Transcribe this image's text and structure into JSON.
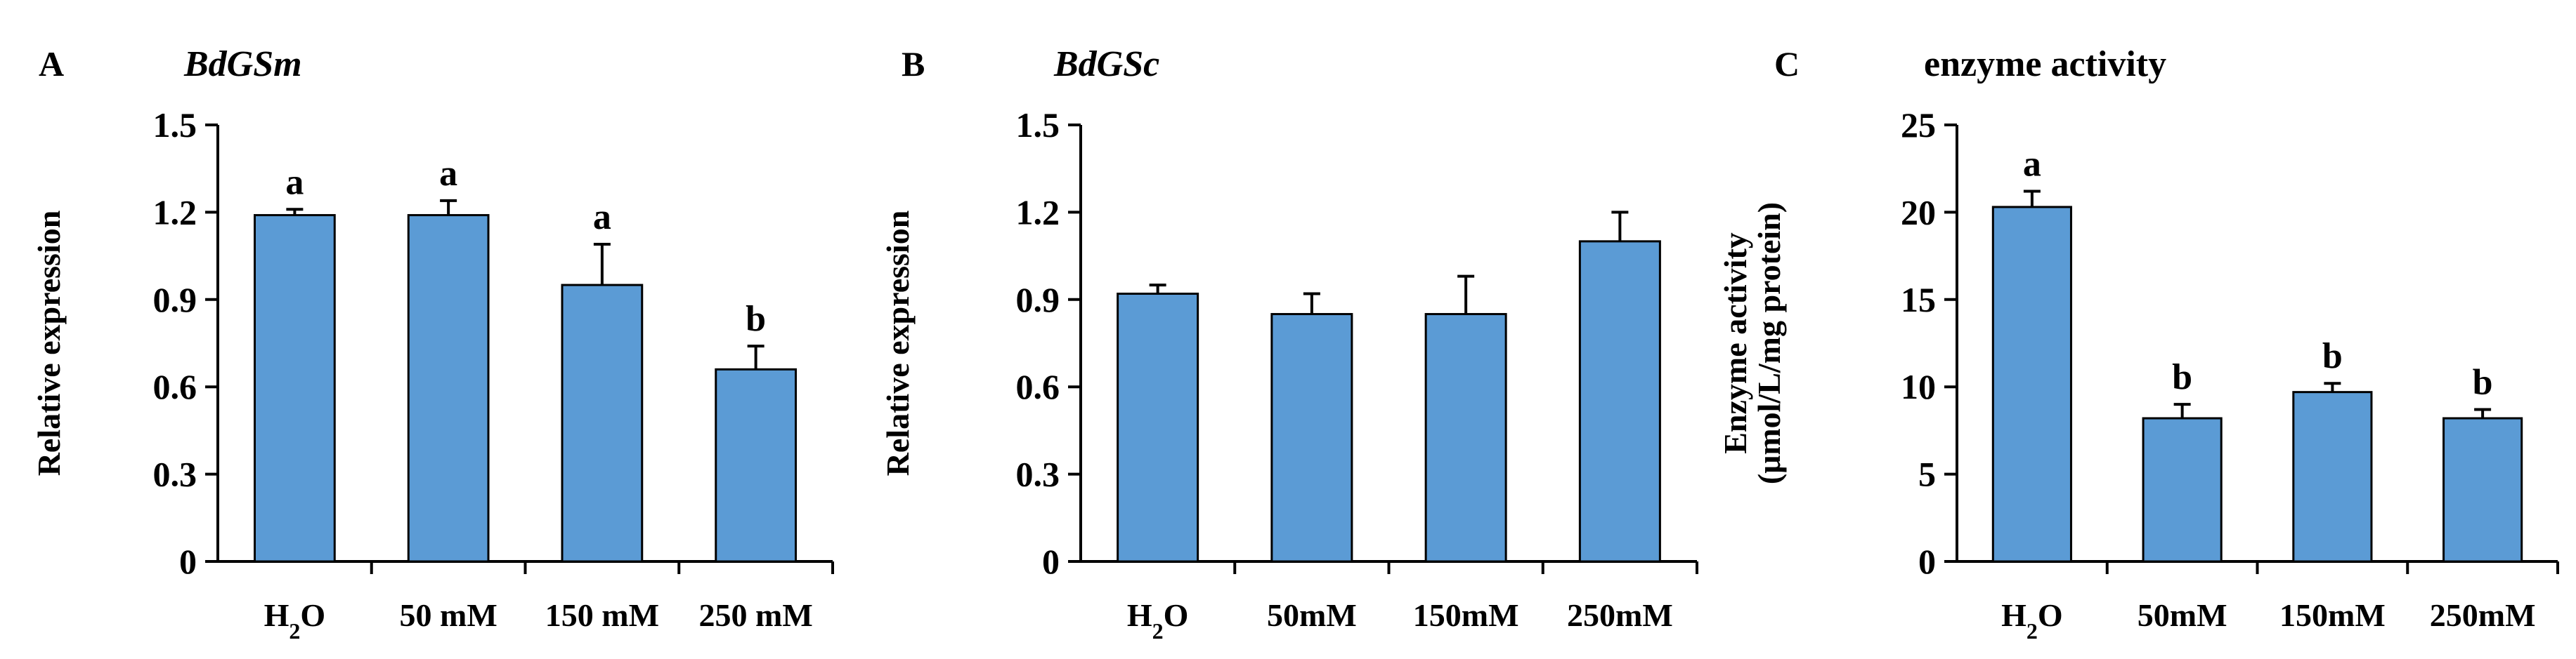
{
  "chart_data": [
    {
      "type": "bar",
      "panel": "A",
      "title": "BdGSm",
      "title_italic": true,
      "ylabel": "Relative expression",
      "ylim": [
        0,
        1.5
      ],
      "yticks": [
        "0",
        "0.3",
        "0.6",
        "0.9",
        "1.2",
        "1.5"
      ],
      "categories": [
        "H2O",
        "50 mM",
        "150 mM",
        "250 mM"
      ],
      "values": [
        1.19,
        1.19,
        0.95,
        0.66
      ],
      "errors": [
        0.02,
        0.05,
        0.14,
        0.08
      ],
      "letters": [
        "a",
        "a",
        "a",
        "b"
      ],
      "bar_color": "#5b9bd5"
    },
    {
      "type": "bar",
      "panel": "B",
      "title": "BdGSc",
      "title_italic": true,
      "ylabel": "Relative expression",
      "ylim": [
        0,
        1.5
      ],
      "yticks": [
        "0",
        "0.3",
        "0.6",
        "0.9",
        "1.2",
        "1.5"
      ],
      "categories": [
        "H2O",
        "50mM",
        "150mM",
        "250mM"
      ],
      "values": [
        0.92,
        0.85,
        0.85,
        1.1
      ],
      "errors": [
        0.03,
        0.07,
        0.13,
        0.1
      ],
      "letters": [
        "",
        "",
        "",
        ""
      ],
      "bar_color": "#5b9bd5"
    },
    {
      "type": "bar",
      "panel": "C",
      "title": "enzyme activity",
      "title_italic": false,
      "ylabel": [
        "Enzyme activity",
        "(μmol/L/mg protein)"
      ],
      "ylim": [
        0,
        25
      ],
      "yticks": [
        "0",
        "5",
        "10",
        "15",
        "20",
        "25"
      ],
      "categories": [
        "H2O",
        "50mM",
        "150mM",
        "250mM"
      ],
      "values": [
        20.3,
        8.2,
        9.7,
        8.2
      ],
      "errors": [
        0.9,
        0.8,
        0.5,
        0.5
      ],
      "letters": [
        "a",
        "b",
        "b",
        "b"
      ],
      "bar_color": "#5b9bd5"
    }
  ]
}
